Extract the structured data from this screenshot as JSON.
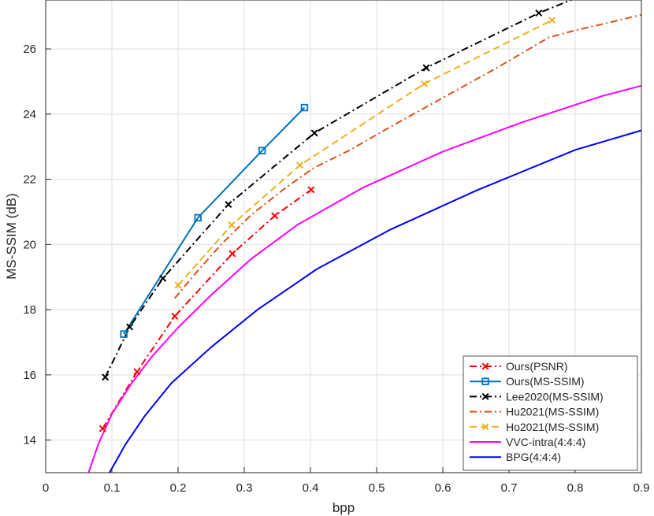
{
  "chart_data": {
    "type": "line",
    "xlabel": "bpp",
    "ylabel": "MS-SSIM (dB)",
    "xlim": [
      0,
      0.9
    ],
    "ylim": [
      13,
      27.5
    ],
    "xticks": [
      0,
      0.1,
      0.2,
      0.3,
      0.4,
      0.5,
      0.6,
      0.7,
      0.8,
      0.9
    ],
    "yticks": [
      14,
      16,
      18,
      20,
      22,
      24,
      26
    ],
    "xtick_labels": [
      "0",
      "0.1",
      "0.2",
      "0.3",
      "0.4",
      "0.5",
      "0.6",
      "0.7",
      "0.8",
      "0.9"
    ],
    "ytick_labels": [
      "14",
      "16",
      "18",
      "20",
      "22",
      "24",
      "26"
    ],
    "grid": true,
    "legend_position": "bottom-right",
    "series": [
      {
        "name": "Ours(PSNR)",
        "color": "#ff0000",
        "dash": "dashdot",
        "marker": "x",
        "x": [
          0.086,
          0.138,
          0.195,
          0.282,
          0.346,
          0.401
        ],
        "y": [
          14.35,
          16.1,
          17.8,
          19.72,
          20.88,
          21.68
        ]
      },
      {
        "name": "Ours(MS-SSIM)",
        "color": "#0072bd",
        "dash": "solid",
        "marker": "square",
        "x": [
          0.118,
          0.23,
          0.327,
          0.391
        ],
        "y": [
          17.25,
          20.82,
          22.88,
          24.2
        ]
      },
      {
        "name": "Lee2020(MS-SSIM)",
        "color": "#000000",
        "dash": "dashdot",
        "marker": "x",
        "x": [
          0.09,
          0.127,
          0.177,
          0.276,
          0.406,
          0.575,
          0.745,
          0.83
        ],
        "y": [
          15.93,
          17.47,
          18.96,
          21.23,
          23.42,
          25.42,
          27.1,
          27.8
        ]
      },
      {
        "name": "Hu2021(MS-SSIM)",
        "color": "#d95319",
        "dash": "dashdot",
        "marker": "none",
        "x": [
          0.195,
          0.23,
          0.265,
          0.31,
          0.36,
          0.405,
          0.46,
          0.52,
          0.6,
          0.68,
          0.76,
          0.8,
          0.85,
          0.9
        ],
        "y": [
          18.35,
          19.2,
          20.0,
          20.9,
          21.7,
          22.35,
          22.9,
          23.6,
          24.5,
          25.4,
          26.35,
          26.57,
          26.8,
          27.05
        ]
      },
      {
        "name": "Ho2021(MS-SSIM)",
        "color": "#edb120",
        "dash": "dashed",
        "marker": "x",
        "x": [
          0.2,
          0.281,
          0.384,
          0.572,
          0.765
        ],
        "y": [
          18.75,
          20.6,
          22.43,
          24.93,
          26.88
        ]
      },
      {
        "name": "VVC-intra(4:4:4)",
        "color": "#ff00ff",
        "dash": "solid",
        "marker": "none",
        "x": [
          0.063,
          0.08,
          0.1,
          0.13,
          0.16,
          0.2,
          0.25,
          0.31,
          0.38,
          0.48,
          0.6,
          0.72,
          0.84,
          0.9
        ],
        "y": [
          12.9,
          13.9,
          14.8,
          15.75,
          16.55,
          17.45,
          18.45,
          19.55,
          20.6,
          21.75,
          22.85,
          23.75,
          24.55,
          24.87
        ]
      },
      {
        "name": "BPG(4:4:4)",
        "color": "#0000ff",
        "dash": "solid",
        "marker": "none",
        "x": [
          0.095,
          0.12,
          0.15,
          0.19,
          0.25,
          0.32,
          0.41,
          0.52,
          0.65,
          0.8,
          0.9
        ],
        "y": [
          12.95,
          13.85,
          14.75,
          15.75,
          16.85,
          18.0,
          19.25,
          20.45,
          21.65,
          22.9,
          23.5
        ]
      }
    ]
  }
}
